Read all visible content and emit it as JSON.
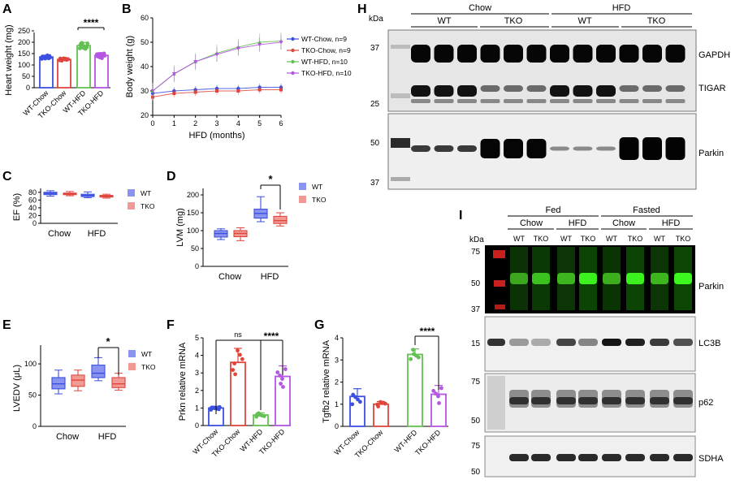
{
  "colors": {
    "blue": "#3b4fe0",
    "red": "#e0453c",
    "green": "#62c152",
    "purple": "#b455e3",
    "lblue": "#8a93ef",
    "lred": "#f09a93"
  },
  "panels": {
    "A": {
      "letter": "A",
      "ylabel": "Heart weight (mg)",
      "yticks": [
        "0",
        "50",
        "100",
        "150",
        "200",
        "250"
      ],
      "sig": "****"
    },
    "B": {
      "letter": "B",
      "ylabel": "Body weight (g)",
      "xlabel": "HFD (months)",
      "yticks": [
        "20",
        "30",
        "40",
        "50",
        "60"
      ],
      "xticks": [
        "0",
        "1",
        "2",
        "3",
        "4",
        "5",
        "6"
      ],
      "legend": [
        "WT-Chow, n=9",
        "TKO-Chow, n=9",
        "WT-HFD, n=10",
        "TKO-HFD, n=10"
      ]
    },
    "C": {
      "letter": "C",
      "ylabel": "EF (%)",
      "yticks": [
        "0",
        "20",
        "40",
        "60",
        "80"
      ],
      "xticks": [
        "Chow",
        "HFD"
      ],
      "legend": [
        "WT",
        "TKO"
      ]
    },
    "D": {
      "letter": "D",
      "ylabel": "LVM (mg)",
      "yticks": [
        "0",
        "50",
        "100",
        "150",
        "200"
      ],
      "xticks": [
        "Chow",
        "HFD"
      ],
      "legend": [
        "WT",
        "TKO"
      ],
      "sig": "*"
    },
    "E": {
      "letter": "E",
      "ylabel": "LVEDV (μL)",
      "yticks": [
        "0",
        "50",
        "100"
      ],
      "xticks": [
        "Chow",
        "HFD"
      ],
      "legend": [
        "WT",
        "TKO"
      ],
      "sig": "*"
    },
    "F": {
      "letter": "F",
      "ylabel": "Prkn relative mRNA",
      "yticks": [
        "0",
        "1",
        "2",
        "3",
        "4",
        "5"
      ],
      "sig1": "ns",
      "sig2": "****"
    },
    "G": {
      "letter": "G",
      "ylabel": "Tgfb2 relative mRNA",
      "yticks": [
        "0",
        "1",
        "2",
        "3",
        "4"
      ],
      "sig": "****"
    },
    "H": {
      "letter": "H",
      "kda": "kDa",
      "groups": [
        "Chow",
        "HFD"
      ],
      "subgroups": [
        "WT",
        "TKO",
        "WT",
        "TKO"
      ],
      "markers_top": [
        "37",
        "25"
      ],
      "markers_bottom": [
        "50",
        "37"
      ],
      "labels": [
        "GAPDH",
        "TIGAR",
        "Parkin"
      ]
    },
    "I": {
      "letter": "I",
      "kda": "kDa",
      "groups": [
        "Fed",
        "Fasted"
      ],
      "diets": [
        "Chow",
        "HFD",
        "Chow",
        "HFD"
      ],
      "lanes": [
        "WT",
        "TKO",
        "WT",
        "TKO",
        "WT",
        "TKO",
        "WT",
        "TKO"
      ],
      "markers_parkin": [
        "75",
        "50",
        "37"
      ],
      "markers_lc3": [
        "15"
      ],
      "markers_p62": [
        "75",
        "50"
      ],
      "markers_sdha": [
        "75",
        "50"
      ],
      "labels": [
        "Parkin",
        "LC3B",
        "p62",
        "SDHA"
      ]
    }
  },
  "group_names": [
    "WT-Chow",
    "TKO-Chow",
    "WT-HFD",
    "TKO-HFD"
  ],
  "chart_data": [
    {
      "panel": "A",
      "type": "bar",
      "categories": [
        "WT-Chow",
        "TKO-Chow",
        "WT-HFD",
        "TKO-HFD"
      ],
      "values": [
        135,
        124,
        185,
        142
      ],
      "ylabel": "Heart weight (mg)",
      "ylim": [
        0,
        250
      ]
    },
    {
      "panel": "B",
      "type": "line",
      "x": [
        0,
        1,
        2,
        3,
        4,
        5,
        6
      ],
      "xlabel": "HFD (months)",
      "ylabel": "Body weight (g)",
      "ylim": [
        20,
        60
      ],
      "series": [
        {
          "name": "WT-Chow, n=9",
          "values": [
            29,
            30,
            30.5,
            31,
            31,
            31.5,
            31.5
          ]
        },
        {
          "name": "TKO-Chow, n=9",
          "values": [
            27.5,
            29,
            29.5,
            30,
            30,
            30.5,
            30.5
          ]
        },
        {
          "name": "WT-HFD, n=10",
          "values": [
            30,
            37,
            42,
            45.5,
            48,
            50,
            50.5
          ]
        },
        {
          "name": "TKO-HFD, n=10",
          "values": [
            30,
            37,
            42,
            45,
            47.5,
            49,
            50
          ]
        }
      ]
    },
    {
      "panel": "C",
      "type": "box",
      "ylabel": "EF (%)",
      "ylim": [
        0,
        90
      ],
      "categories": [
        "Chow",
        "HFD"
      ],
      "series": [
        {
          "name": "WT",
          "boxes": [
            [
              70,
              74,
              77,
              80,
              84
            ],
            [
              66,
              69,
              72,
              75,
              81
            ]
          ]
        },
        {
          "name": "TKO",
          "boxes": [
            [
              71,
              74,
              76,
              78,
              82
            ],
            [
              65,
              68,
              70,
              72,
              75
            ]
          ]
        }
      ]
    },
    {
      "panel": "D",
      "type": "box",
      "ylabel": "LVM (mg)",
      "ylim": [
        0,
        200
      ],
      "categories": [
        "Chow",
        "HFD"
      ],
      "series": [
        {
          "name": "WT",
          "boxes": [
            [
              75,
              82,
              92,
              100,
              105
            ],
            [
              125,
              135,
              148,
              160,
              195
            ]
          ]
        },
        {
          "name": "TKO",
          "boxes": [
            [
              72,
              83,
              92,
              100,
              108
            ],
            [
              113,
              120,
              128,
              140,
              150
            ]
          ]
        }
      ]
    },
    {
      "panel": "E",
      "type": "box",
      "ylabel": "LVEDV (μL)",
      "ylim": [
        0,
        130
      ],
      "categories": [
        "Chow",
        "HFD"
      ],
      "series": [
        {
          "name": "WT",
          "boxes": [
            [
              52,
              60,
              68,
              78,
              90
            ],
            [
              73,
              78,
              85,
              98,
              110
            ]
          ]
        },
        {
          "name": "TKO",
          "boxes": [
            [
              57,
              64,
              74,
              82,
              90
            ],
            [
              58,
              62,
              68,
              78,
              85
            ]
          ]
        }
      ]
    },
    {
      "panel": "F",
      "type": "bar",
      "categories": [
        "WT-Chow",
        "TKO-Chow",
        "WT-HFD",
        "TKO-HFD"
      ],
      "values": [
        1.0,
        3.6,
        0.6,
        2.8
      ],
      "ylabel": "Prkn relative mRNA",
      "ylim": [
        0,
        5
      ]
    },
    {
      "panel": "G",
      "type": "bar",
      "categories": [
        "WT-Chow",
        "TKO-Chow",
        "WT-HFD",
        "TKO-HFD"
      ],
      "values": [
        1.35,
        1.0,
        3.25,
        1.45
      ],
      "ylabel": "Tgfb2 relative mRNA",
      "ylim": [
        0,
        4
      ]
    }
  ]
}
